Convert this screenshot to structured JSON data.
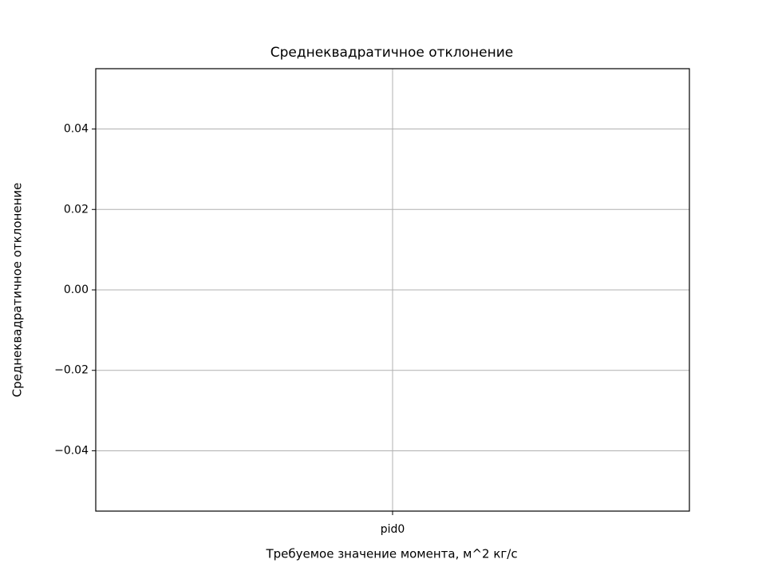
{
  "chart_data": {
    "type": "bar",
    "title": "Среднеквадратичное отклонение",
    "xlabel": "Требуемое значение момента, м^2 кг/с",
    "ylabel": "Среднеквадратичное отклонение",
    "categories": [
      "pid0"
    ],
    "values": [
      0
    ],
    "color": "#1f77b4",
    "ylim": [
      -0.055,
      0.055
    ],
    "yticks": [
      {
        "value": -0.04,
        "label": "−0.04"
      },
      {
        "value": -0.02,
        "label": "−0.02"
      },
      {
        "value": 0,
        "label": "0.00"
      },
      0.02,
      0.04
    ],
    "grid": true
  }
}
